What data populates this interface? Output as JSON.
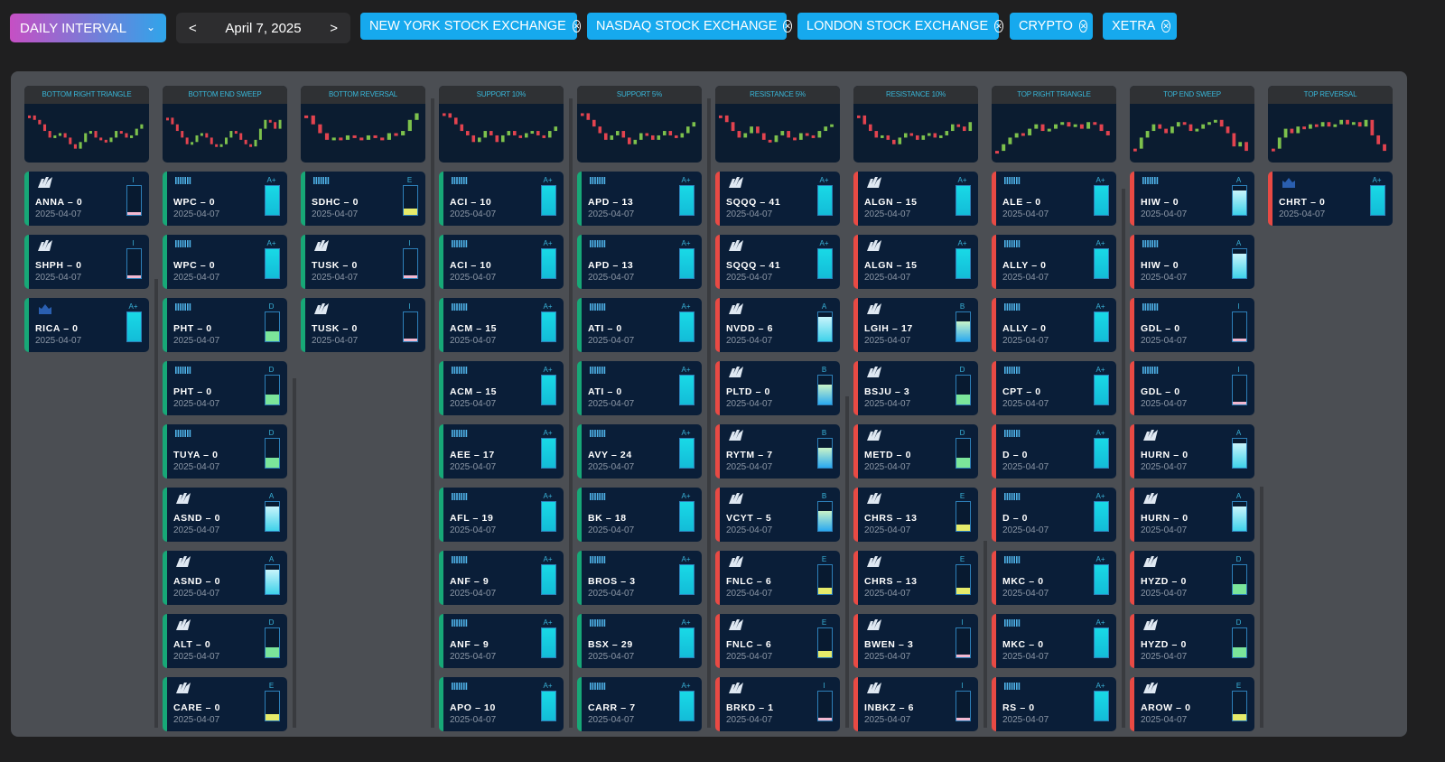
{
  "toolbar": {
    "interval": "DAILY INTERVAL",
    "date": "April 7, 2025",
    "prev": "<",
    "next": ">",
    "exchanges": [
      "NEW YORK STOCK EXCHANGE",
      "NASDAQ STOCK EXCHANGE",
      "LONDON STOCK EXCHANGE",
      "CRYPTO",
      "XETRA"
    ],
    "chip_color": "#16a9ee"
  },
  "colors": {
    "bullish_border": "#17a877",
    "bearish_border": "#e84a44"
  },
  "columns": [
    {
      "title": "BOTTOM RIGHT TRIANGLE",
      "side": "bullish",
      "cards": [
        {
          "ticker": "ANNA",
          "score": 0,
          "exchange": "nasdaq",
          "grade": "I",
          "date": "2025-04-07"
        },
        {
          "ticker": "SHPH",
          "score": 0,
          "exchange": "nasdaq",
          "grade": "I",
          "date": "2025-04-07"
        },
        {
          "ticker": "RICA",
          "score": 0,
          "exchange": "lse",
          "grade": "A+",
          "date": "2025-04-07"
        }
      ]
    },
    {
      "title": "BOTTOM END SWEEP",
      "side": "bullish",
      "cards": [
        {
          "ticker": "WPC",
          "score": 0,
          "exchange": "nyse",
          "grade": "A+",
          "date": "2025-04-07"
        },
        {
          "ticker": "WPC",
          "score": 0,
          "exchange": "nyse",
          "grade": "A+",
          "date": "2025-04-07"
        },
        {
          "ticker": "PHT",
          "score": 0,
          "exchange": "nyse",
          "grade": "D",
          "date": "2025-04-07"
        },
        {
          "ticker": "PHT",
          "score": 0,
          "exchange": "nyse",
          "grade": "D",
          "date": "2025-04-07"
        },
        {
          "ticker": "TUYA",
          "score": 0,
          "exchange": "nyse",
          "grade": "D",
          "date": "2025-04-07"
        },
        {
          "ticker": "ASND",
          "score": 0,
          "exchange": "nasdaq",
          "grade": "A",
          "date": "2025-04-07"
        },
        {
          "ticker": "ASND",
          "score": 0,
          "exchange": "nasdaq",
          "grade": "A",
          "date": "2025-04-07"
        },
        {
          "ticker": "ALT",
          "score": 0,
          "exchange": "nasdaq",
          "grade": "D",
          "date": "2025-04-07"
        },
        {
          "ticker": "CARE",
          "score": 0,
          "exchange": "nasdaq",
          "grade": "E",
          "date": "2025-04-07"
        }
      ]
    },
    {
      "title": "BOTTOM REVERSAL",
      "side": "bullish",
      "cards": [
        {
          "ticker": "SDHC",
          "score": 0,
          "exchange": "nyse",
          "grade": "E",
          "date": "2025-04-07"
        },
        {
          "ticker": "TUSK",
          "score": 0,
          "exchange": "nasdaq",
          "grade": "I",
          "date": "2025-04-07"
        },
        {
          "ticker": "TUSK",
          "score": 0,
          "exchange": "nasdaq",
          "grade": "I",
          "date": "2025-04-07"
        }
      ]
    },
    {
      "title": "SUPPORT 10%",
      "side": "bullish",
      "cards": [
        {
          "ticker": "ACI",
          "score": 10,
          "exchange": "nyse",
          "grade": "A+",
          "date": "2025-04-07"
        },
        {
          "ticker": "ACI",
          "score": 10,
          "exchange": "nyse",
          "grade": "A+",
          "date": "2025-04-07"
        },
        {
          "ticker": "ACM",
          "score": 15,
          "exchange": "nyse",
          "grade": "A+",
          "date": "2025-04-07"
        },
        {
          "ticker": "ACM",
          "score": 15,
          "exchange": "nyse",
          "grade": "A+",
          "date": "2025-04-07"
        },
        {
          "ticker": "AEE",
          "score": 17,
          "exchange": "nyse",
          "grade": "A+",
          "date": "2025-04-07"
        },
        {
          "ticker": "AFL",
          "score": 19,
          "exchange": "nyse",
          "grade": "A+",
          "date": "2025-04-07"
        },
        {
          "ticker": "ANF",
          "score": 9,
          "exchange": "nyse",
          "grade": "A+",
          "date": "2025-04-07"
        },
        {
          "ticker": "ANF",
          "score": 9,
          "exchange": "nyse",
          "grade": "A+",
          "date": "2025-04-07"
        },
        {
          "ticker": "APO",
          "score": 10,
          "exchange": "nyse",
          "grade": "A+",
          "date": "2025-04-07"
        }
      ]
    },
    {
      "title": "SUPPORT 5%",
      "side": "bullish",
      "cards": [
        {
          "ticker": "APD",
          "score": 13,
          "exchange": "nyse",
          "grade": "A+",
          "date": "2025-04-07"
        },
        {
          "ticker": "APD",
          "score": 13,
          "exchange": "nyse",
          "grade": "A+",
          "date": "2025-04-07"
        },
        {
          "ticker": "ATI",
          "score": 0,
          "exchange": "nyse",
          "grade": "A+",
          "date": "2025-04-07"
        },
        {
          "ticker": "ATI",
          "score": 0,
          "exchange": "nyse",
          "grade": "A+",
          "date": "2025-04-07"
        },
        {
          "ticker": "AVY",
          "score": 24,
          "exchange": "nyse",
          "grade": "A+",
          "date": "2025-04-07"
        },
        {
          "ticker": "BK",
          "score": 18,
          "exchange": "nyse",
          "grade": "A+",
          "date": "2025-04-07"
        },
        {
          "ticker": "BROS",
          "score": 3,
          "exchange": "nyse",
          "grade": "A+",
          "date": "2025-04-07"
        },
        {
          "ticker": "BSX",
          "score": 29,
          "exchange": "nyse",
          "grade": "A+",
          "date": "2025-04-07"
        },
        {
          "ticker": "CARR",
          "score": 7,
          "exchange": "nyse",
          "grade": "A+",
          "date": "2025-04-07"
        }
      ]
    },
    {
      "title": "RESISTANCE 5%",
      "side": "bearish",
      "cards": [
        {
          "ticker": "SQQQ",
          "score": 41,
          "exchange": "nasdaq",
          "grade": "A+",
          "date": "2025-04-07"
        },
        {
          "ticker": "SQQQ",
          "score": 41,
          "exchange": "nasdaq",
          "grade": "A+",
          "date": "2025-04-07"
        },
        {
          "ticker": "NVDD",
          "score": 6,
          "exchange": "nasdaq",
          "grade": "A",
          "date": "2025-04-07"
        },
        {
          "ticker": "PLTD",
          "score": 0,
          "exchange": "nasdaq",
          "grade": "B",
          "date": "2025-04-07"
        },
        {
          "ticker": "RYTM",
          "score": 7,
          "exchange": "nasdaq",
          "grade": "B",
          "date": "2025-04-07"
        },
        {
          "ticker": "VCYT",
          "score": 5,
          "exchange": "nasdaq",
          "grade": "B",
          "date": "2025-04-07"
        },
        {
          "ticker": "FNLC",
          "score": 6,
          "exchange": "nasdaq",
          "grade": "E",
          "date": "2025-04-07"
        },
        {
          "ticker": "FNLC",
          "score": 6,
          "exchange": "nasdaq",
          "grade": "E",
          "date": "2025-04-07"
        },
        {
          "ticker": "BRKD",
          "score": 1,
          "exchange": "nasdaq",
          "grade": "I",
          "date": "2025-04-07"
        }
      ]
    },
    {
      "title": "RESISTANCE 10%",
      "side": "bearish",
      "cards": [
        {
          "ticker": "ALGN",
          "score": 15,
          "exchange": "nasdaq",
          "grade": "A+",
          "date": "2025-04-07"
        },
        {
          "ticker": "ALGN",
          "score": 15,
          "exchange": "nasdaq",
          "grade": "A+",
          "date": "2025-04-07"
        },
        {
          "ticker": "LGIH",
          "score": 17,
          "exchange": "nasdaq",
          "grade": "B",
          "date": "2025-04-07"
        },
        {
          "ticker": "BSJU",
          "score": 3,
          "exchange": "nasdaq",
          "grade": "D",
          "date": "2025-04-07"
        },
        {
          "ticker": "METD",
          "score": 0,
          "exchange": "nasdaq",
          "grade": "D",
          "date": "2025-04-07"
        },
        {
          "ticker": "CHRS",
          "score": 13,
          "exchange": "nasdaq",
          "grade": "E",
          "date": "2025-04-07"
        },
        {
          "ticker": "CHRS",
          "score": 13,
          "exchange": "nasdaq",
          "grade": "E",
          "date": "2025-04-07"
        },
        {
          "ticker": "BWEN",
          "score": 3,
          "exchange": "nasdaq",
          "grade": "I",
          "date": "2025-04-07"
        },
        {
          "ticker": "INBKZ",
          "score": 6,
          "exchange": "nasdaq",
          "grade": "I",
          "date": "2025-04-07"
        }
      ]
    },
    {
      "title": "TOP RIGHT TRIANGLE",
      "side": "bearish",
      "cards": [
        {
          "ticker": "ALE",
          "score": 0,
          "exchange": "nyse",
          "grade": "A+",
          "date": "2025-04-07"
        },
        {
          "ticker": "ALLY",
          "score": 0,
          "exchange": "nyse",
          "grade": "A+",
          "date": "2025-04-07"
        },
        {
          "ticker": "ALLY",
          "score": 0,
          "exchange": "nyse",
          "grade": "A+",
          "date": "2025-04-07"
        },
        {
          "ticker": "CPT",
          "score": 0,
          "exchange": "nyse",
          "grade": "A+",
          "date": "2025-04-07"
        },
        {
          "ticker": "D",
          "score": 0,
          "exchange": "nyse",
          "grade": "A+",
          "date": "2025-04-07"
        },
        {
          "ticker": "D",
          "score": 0,
          "exchange": "nyse",
          "grade": "A+",
          "date": "2025-04-07"
        },
        {
          "ticker": "MKC",
          "score": 0,
          "exchange": "nyse",
          "grade": "A+",
          "date": "2025-04-07"
        },
        {
          "ticker": "MKC",
          "score": 0,
          "exchange": "nyse",
          "grade": "A+",
          "date": "2025-04-07"
        },
        {
          "ticker": "RS",
          "score": 0,
          "exchange": "nyse",
          "grade": "A+",
          "date": "2025-04-07"
        }
      ]
    },
    {
      "title": "TOP END SWEEP",
      "side": "bearish",
      "cards": [
        {
          "ticker": "HIW",
          "score": 0,
          "exchange": "nyse",
          "grade": "A",
          "date": "2025-04-07"
        },
        {
          "ticker": "HIW",
          "score": 0,
          "exchange": "nyse",
          "grade": "A",
          "date": "2025-04-07"
        },
        {
          "ticker": "GDL",
          "score": 0,
          "exchange": "nyse",
          "grade": "I",
          "date": "2025-04-07"
        },
        {
          "ticker": "GDL",
          "score": 0,
          "exchange": "nyse",
          "grade": "I",
          "date": "2025-04-07"
        },
        {
          "ticker": "HURN",
          "score": 0,
          "exchange": "nasdaq",
          "grade": "A",
          "date": "2025-04-07"
        },
        {
          "ticker": "HURN",
          "score": 0,
          "exchange": "nasdaq",
          "grade": "A",
          "date": "2025-04-07"
        },
        {
          "ticker": "HYZD",
          "score": 0,
          "exchange": "nasdaq",
          "grade": "D",
          "date": "2025-04-07"
        },
        {
          "ticker": "HYZD",
          "score": 0,
          "exchange": "nasdaq",
          "grade": "D",
          "date": "2025-04-07"
        },
        {
          "ticker": "AROW",
          "score": 0,
          "exchange": "nasdaq",
          "grade": "E",
          "date": "2025-04-07"
        }
      ]
    },
    {
      "title": "TOP REVERSAL",
      "side": "bearish",
      "cards": [
        {
          "ticker": "CHRT",
          "score": 0,
          "exchange": "lse",
          "grade": "A+",
          "date": "2025-04-07"
        }
      ]
    }
  ]
}
